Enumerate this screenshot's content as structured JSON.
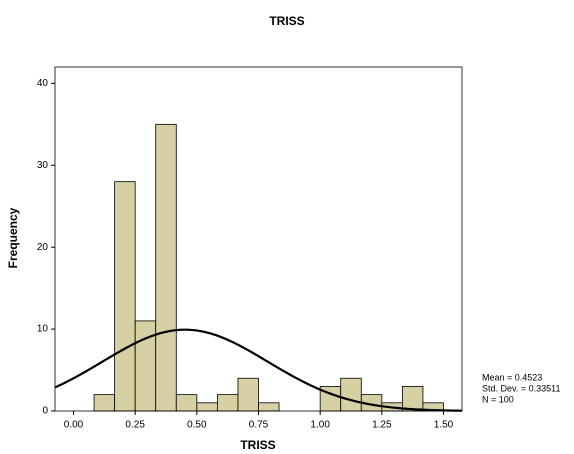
{
  "chart_data": {
    "type": "histogram",
    "title": "TRISS",
    "x_label": "TRISS",
    "y_label": "Frequency",
    "bins": [
      0.0833,
      0.1667,
      0.25,
      0.3333,
      0.4167,
      0.5,
      0.5833,
      0.6667,
      0.75,
      0.8333,
      0.9167,
      1.0,
      1.0833,
      1.1667,
      1.25,
      1.3333,
      1.4167,
      1.5
    ],
    "values": [
      2,
      28,
      11,
      35,
      2,
      1,
      2,
      4,
      1,
      0,
      0,
      3,
      4,
      2,
      1,
      3,
      1
    ],
    "color": "#d6d0a4",
    "xlim": [
      -0.075,
      1.575
    ],
    "xticks": [
      {
        "value": 0,
        "label": "0.00"
      },
      {
        "value": 0.25,
        "label": "0.25"
      },
      {
        "value": 0.5,
        "label": "0.50"
      },
      {
        "value": 0.75,
        "label": "0.75"
      },
      {
        "value": 1,
        "label": "1.00"
      },
      {
        "value": 1.25,
        "label": "1.25"
      },
      {
        "value": 1.5,
        "label": "1.50"
      }
    ],
    "ylim": [
      0,
      42
    ],
    "yticks": [
      0,
      10,
      20,
      30,
      40
    ],
    "normal_curve": {
      "mean": 0.4523,
      "sd": 0.33511,
      "n": 100,
      "color": "#000000"
    },
    "annotations": [
      "Mean = 0.4523",
      "Std. Dev. = 0.33511",
      "N = 100"
    ]
  }
}
